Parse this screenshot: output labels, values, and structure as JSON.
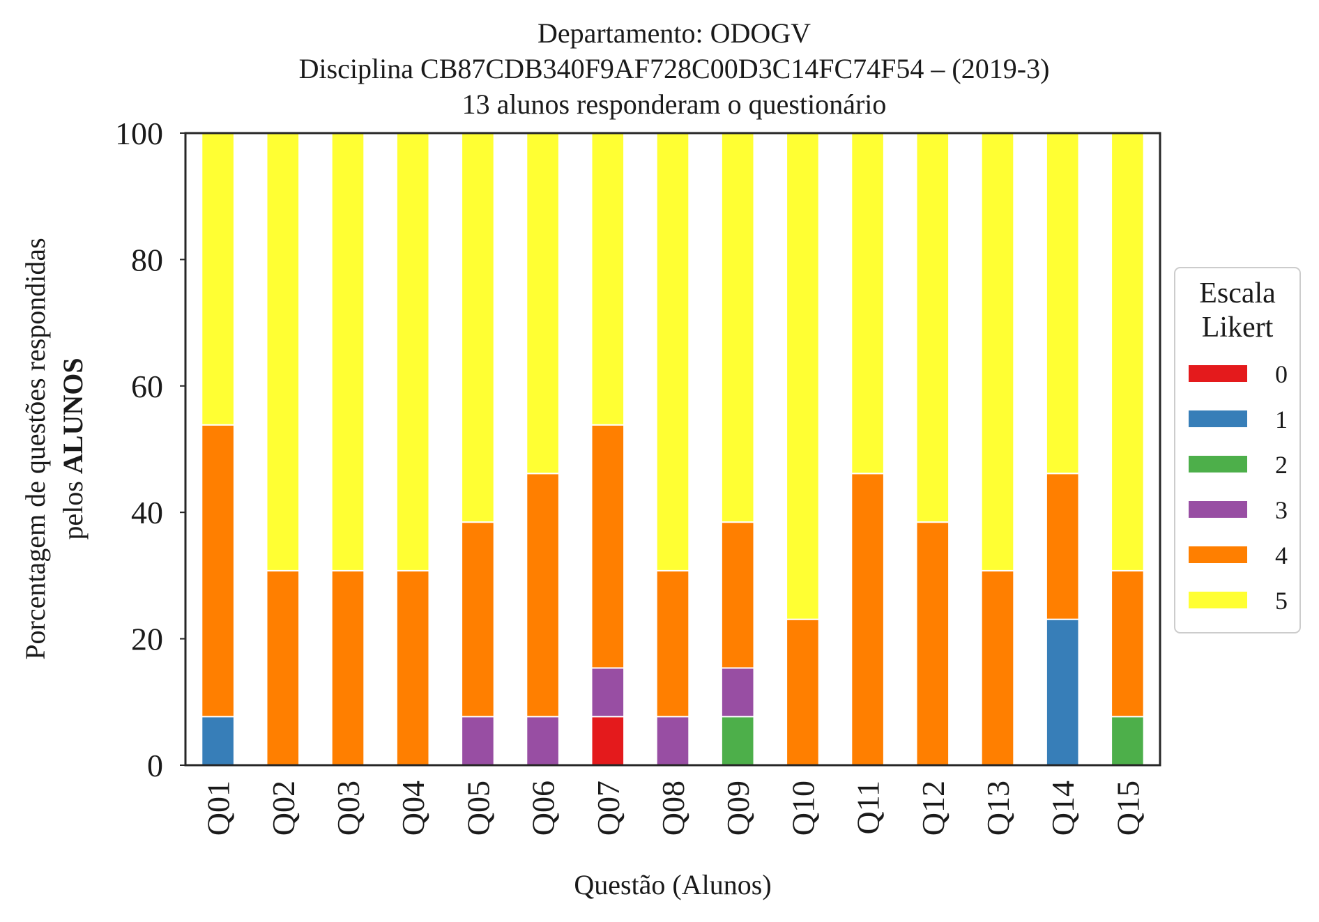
{
  "chart_data": {
    "type": "bar",
    "stacked": true,
    "title_lines": [
      "Departamento: ODOGV",
      "Disciplina CB87CDB340F9AF728C00D3C14FC74F54 – (2019-3)",
      "13 alunos responderam o questionário"
    ],
    "xlabel": "Questão (Alunos)",
    "ylabel_line1": "Porcentagem de questões respondidas",
    "ylabel_line2_prefix": "pelos ",
    "ylabel_line2_bold": "ALUNOS",
    "ylim": [
      0,
      100
    ],
    "yticks": [
      "0",
      "20",
      "40",
      "60",
      "80",
      "100"
    ],
    "grid": false,
    "legend": {
      "title_lines": [
        "Escala",
        "Likert"
      ],
      "placement": "right-center"
    },
    "categories": [
      "Q01",
      "Q02",
      "Q03",
      "Q04",
      "Q05",
      "Q06",
      "Q07",
      "Q08",
      "Q09",
      "Q10",
      "Q11",
      "Q12",
      "Q13",
      "Q14",
      "Q15"
    ],
    "series": [
      {
        "name": "0",
        "color": "#e41a1c",
        "values": [
          0,
          0,
          0,
          0,
          0,
          0,
          7.69,
          0,
          0,
          0,
          0,
          0,
          0,
          0,
          0
        ]
      },
      {
        "name": "1",
        "color": "#377eb8",
        "values": [
          7.69,
          0,
          0,
          0,
          0,
          0,
          0,
          0,
          0,
          0,
          0,
          0,
          0,
          23.08,
          0
        ]
      },
      {
        "name": "2",
        "color": "#4daf4a",
        "values": [
          0,
          0,
          0,
          0,
          0,
          0,
          0,
          0,
          7.69,
          0,
          0,
          0,
          0,
          0,
          7.69
        ]
      },
      {
        "name": "3",
        "color": "#984ea3",
        "values": [
          0,
          0,
          0,
          0,
          7.69,
          7.69,
          7.69,
          7.69,
          7.69,
          0,
          0,
          0,
          0,
          0,
          0
        ]
      },
      {
        "name": "4",
        "color": "#ff7f00",
        "values": [
          46.15,
          30.77,
          30.77,
          30.77,
          30.77,
          38.46,
          38.46,
          23.08,
          23.08,
          23.08,
          46.15,
          38.46,
          30.77,
          23.08,
          23.08
        ]
      },
      {
        "name": "5",
        "color": "#ffff33",
        "values": [
          46.15,
          69.23,
          69.23,
          69.23,
          61.54,
          53.85,
          46.15,
          69.23,
          61.54,
          76.92,
          53.85,
          61.54,
          69.23,
          53.85,
          69.23
        ]
      }
    ]
  }
}
